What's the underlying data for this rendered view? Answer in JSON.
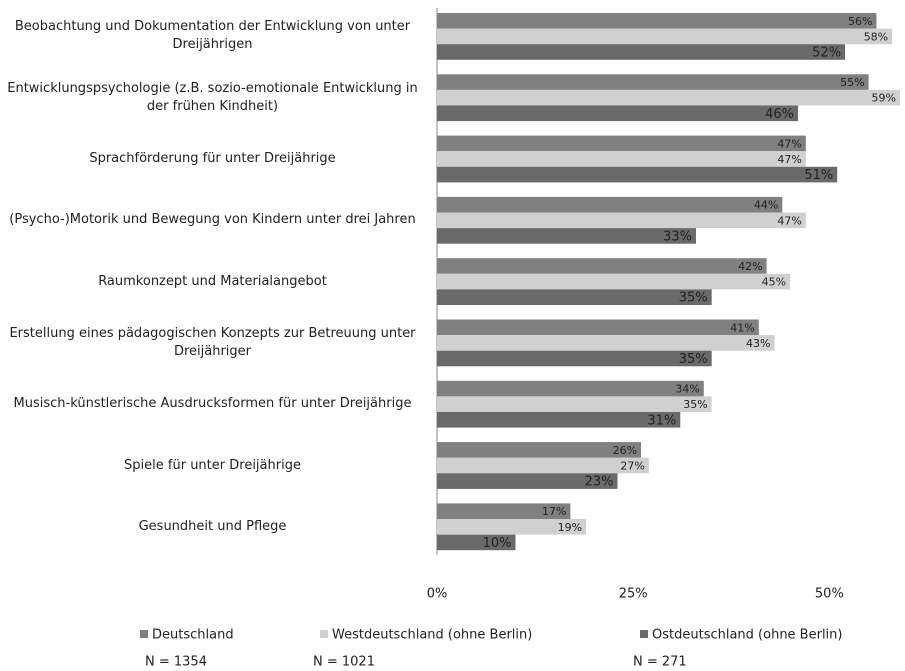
{
  "chart_data": {
    "type": "bar",
    "orientation": "horizontal",
    "categories": [
      "Beobachtung und Dokumentation der Entwicklung von unter Dreijährigen",
      "Entwicklungspsychologie (z.B. sozio-emotionale Entwicklung in der frühen Kindheit)",
      "Sprachförderung für unter Dreijährige",
      "(Psycho-)Motorik und Bewegung von Kindern unter drei Jahren",
      "Raumkonzept und Materialangebot",
      "Erstellung eines pädagogischen Konzepts zur Betreuung unter Dreijähriger",
      "Musisch-künstlerische Ausdrucksformen für unter Dreijährige",
      "Spiele für unter Dreijährige",
      "Gesundheit und Pflege"
    ],
    "series": [
      {
        "name": "Deutschland",
        "n_label": "N = 1354",
        "color": "#808080",
        "values": [
          56,
          55,
          47,
          44,
          42,
          41,
          34,
          26,
          17
        ],
        "value_labels": [
          "56%",
          "55%",
          "47%",
          "44%",
          "42%",
          "41%",
          "34%",
          "26%",
          "17%"
        ]
      },
      {
        "name": "Westdeutschland (ohne Berlin)",
        "n_label": "N = 1021",
        "color": "#d0d0d0",
        "values": [
          58,
          59,
          47,
          47,
          45,
          43,
          35,
          27,
          19
        ],
        "value_labels": [
          "58%",
          "59%",
          "47%",
          "47%",
          "45%",
          "43%",
          "35%",
          "27%",
          "19%"
        ]
      },
      {
        "name": "Ostdeutschland (ohne Berlin)",
        "n_label": "N = 271",
        "color": "#6a6a6a",
        "values": [
          52,
          46,
          51,
          33,
          35,
          35,
          31,
          23,
          10
        ],
        "value_labels": [
          "52%",
          "46%",
          "51%",
          "33%",
          "35%",
          "35%",
          "31%",
          "23%",
          "10%"
        ]
      }
    ],
    "xlim": [
      0,
      59
    ],
    "xticks": [
      {
        "value": 0,
        "label": "0%"
      },
      {
        "value": 25,
        "label": "25%"
      },
      {
        "value": 50,
        "label": "50%"
      }
    ],
    "legend": "bottom"
  }
}
